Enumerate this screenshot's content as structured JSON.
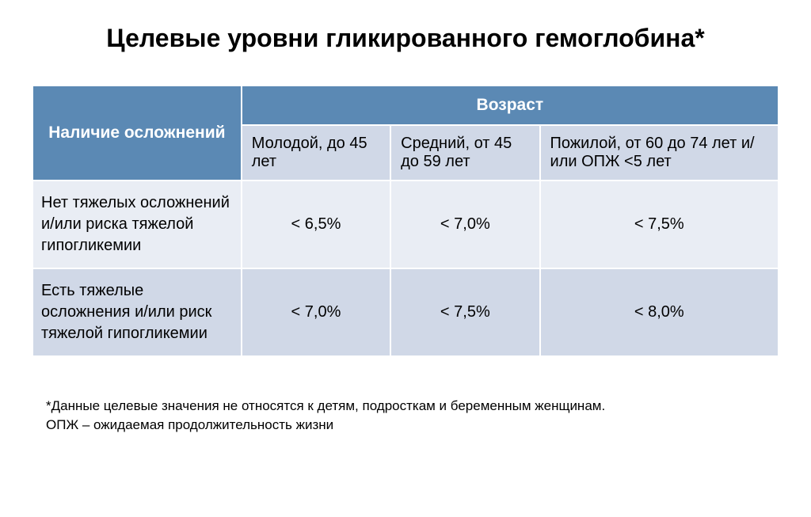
{
  "title": "Целевые уровни гликированного гемоглобина*",
  "table": {
    "type": "table",
    "header_bg_color": "#5b89b4",
    "header_text_color": "#ffffff",
    "row_bg_light": "#e9edf4",
    "row_bg_dark": "#d0d8e7",
    "border_color": "#ffffff",
    "title_fontsize": 32,
    "header_fontsize": 21,
    "cell_fontsize": 20,
    "corner_header": "Наличие осложнений",
    "age_header": "Возраст",
    "columns": [
      "Молодой,  до 45 лет",
      "Средний, от 45 до 59 лет",
      "Пожилой, от 60 до 74 лет и/или ОПЖ <5 лет"
    ],
    "rows": [
      {
        "label": "Нет тяжелых осложнений и/или риска тяжелой гипогликемии",
        "values": [
          "< 6,5%",
          "< 7,0%",
          "< 7,5%"
        ]
      },
      {
        "label": "Есть тяжелые осложнения и/или риск тяжелой гипогликемии",
        "values": [
          "< 7,0%",
          "< 7,5%",
          "< 8,0%"
        ]
      }
    ]
  },
  "footnote": {
    "line1": "*Данные целевые значения не относятся к детям, подросткам и беременным женщинам.",
    "line2": "ОПЖ – ожидаемая продолжительность жизни"
  }
}
